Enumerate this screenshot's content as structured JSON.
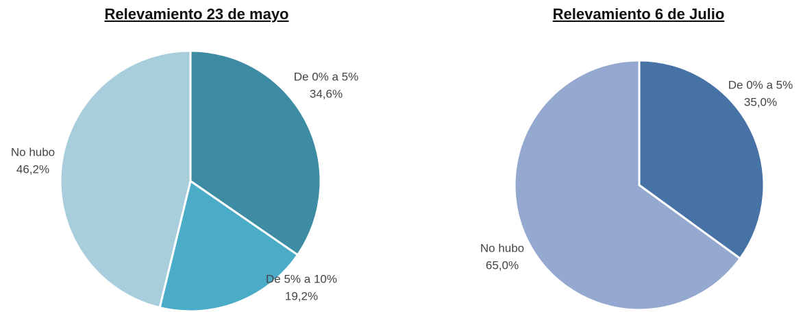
{
  "chart_data": [
    {
      "type": "pie",
      "title": "Relevamiento 23 de mayo",
      "categories": [
        "De 0% a 5%",
        "De 5% a 10%",
        "No hubo"
      ],
      "values": [
        34.6,
        19.2,
        46.2
      ],
      "value_labels": [
        "34,6%",
        "19,2%",
        "46,2%"
      ],
      "colors": [
        "#3d8ca3",
        "#4aacc6",
        "#a9cedb"
      ]
    },
    {
      "type": "pie",
      "title": "Relevamiento 6 de Julio",
      "categories": [
        "De 0% a 5%",
        "No hubo"
      ],
      "values": [
        35.0,
        65.0
      ],
      "value_labels": [
        "35,0%",
        "65,0%"
      ],
      "colors": [
        "#4672a6",
        "#95a8d0"
      ]
    }
  ]
}
